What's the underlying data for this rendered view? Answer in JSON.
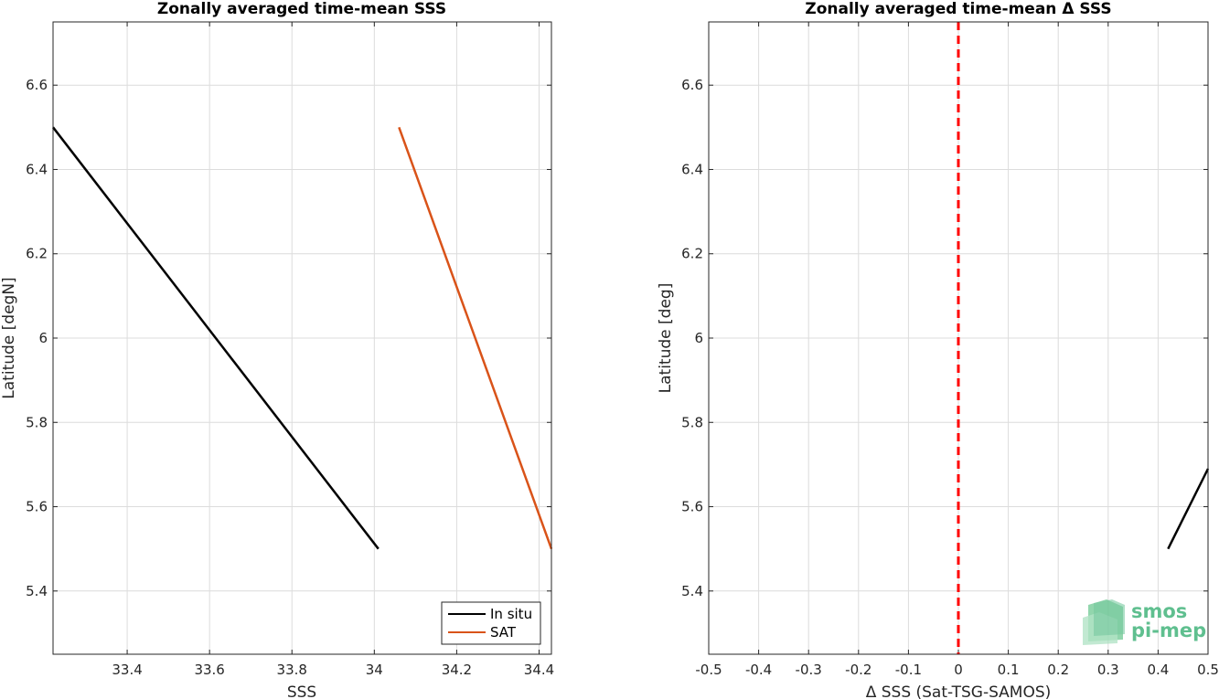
{
  "chart_data": [
    {
      "type": "line",
      "title": "Zonally averaged time-mean SSS",
      "xlabel": "SSS",
      "ylabel": "Latitude [degN]",
      "xlim": [
        33.22,
        34.43
      ],
      "ylim": [
        5.25,
        6.75
      ],
      "xticks": [
        "33.4",
        "33.6",
        "33.8",
        "34",
        "34.2",
        "34.4"
      ],
      "yticks": [
        "5.4",
        "5.6",
        "5.8",
        "6",
        "6.2",
        "6.4",
        "6.6"
      ],
      "grid": true,
      "legend_position": "bottom-right",
      "series": [
        {
          "name": "In situ",
          "color": "#000000",
          "x": [
            33.22,
            34.01
          ],
          "y": [
            6.5,
            5.5
          ]
        },
        {
          "name": "SAT",
          "color": "#D95319",
          "x": [
            34.06,
            34.43
          ],
          "y": [
            6.5,
            5.5
          ]
        }
      ]
    },
    {
      "type": "line",
      "title": "Zonally averaged time-mean Δ SSS",
      "xlabel": "Δ SSS (Sat-TSG-SAMOS)",
      "ylabel": "Latitude [deg]",
      "xlim": [
        -0.5,
        0.5
      ],
      "ylim": [
        5.25,
        6.75
      ],
      "xticks": [
        "-0.5",
        "-0.4",
        "-0.3",
        "-0.2",
        "-0.1",
        "0",
        "0.1",
        "0.2",
        "0.3",
        "0.4",
        "0.5"
      ],
      "yticks": [
        "5.4",
        "5.6",
        "5.8",
        "6",
        "6.2",
        "6.4",
        "6.6"
      ],
      "grid": true,
      "reference_line": {
        "x": 0,
        "color": "#FF0000",
        "style": "dashed"
      },
      "series": [
        {
          "color": "#000000",
          "x": [
            0.42,
            0.5
          ],
          "y": [
            5.5,
            5.69
          ]
        }
      ]
    }
  ],
  "logo": {
    "line1": "smos",
    "line2": "pi-mep",
    "color": "#5fbf8f"
  }
}
